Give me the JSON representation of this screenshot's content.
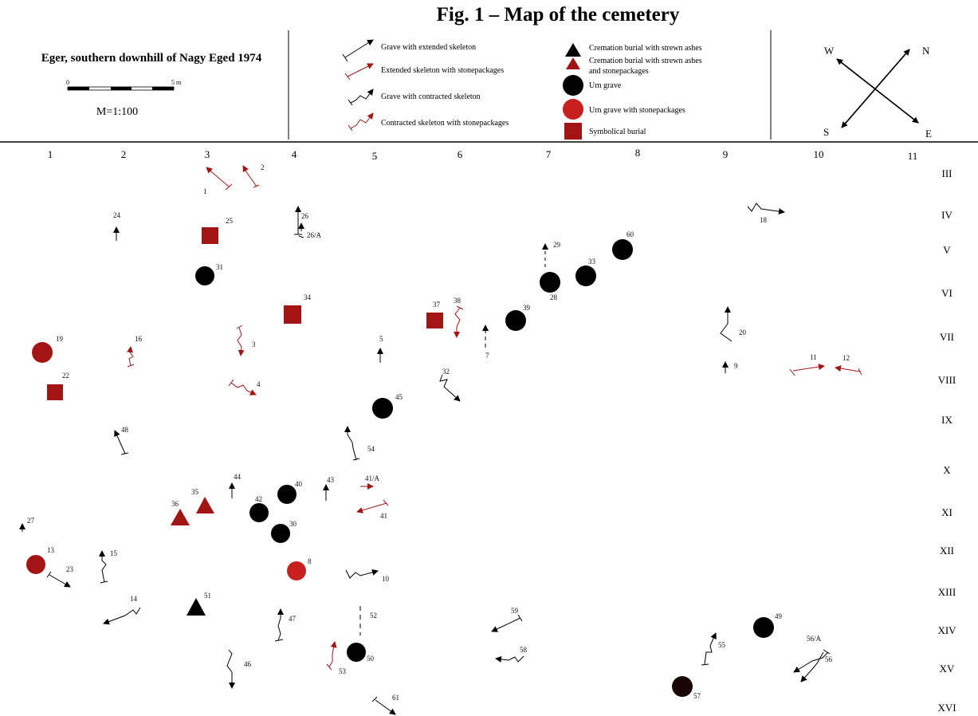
{
  "figure_title": "Fig. 1 – Map of the cemetery",
  "site_title": "Eger, southern downhill of Nagy Eged 1974",
  "scale": {
    "start": "0",
    "end": "5 m",
    "ratio": "M=1:100"
  },
  "legend": {
    "extended": "Grave with extended skeleton",
    "extended_stone": "Extended skeleton with stonepackages",
    "contracted": "Grave with contracted skeleton",
    "contracted_stone": "Contracted skeleton with stonepackages",
    "cremation": "Cremation burial with strewn ashes",
    "cremation_stone_1": "Cremation burial with strewn ashes",
    "cremation_stone_2": "and stonepackages",
    "urn": "Urn grave",
    "urn_stone": "Urn grave with stonepackages",
    "symbolic": "Symbolical burial"
  },
  "compass": {
    "w": "W",
    "n": "N",
    "s": "S",
    "e": "E"
  },
  "columns": [
    "1",
    "2",
    "3",
    "4",
    "5",
    "6",
    "7",
    "8",
    "9",
    "10",
    "11"
  ],
  "rows": [
    "III",
    "IV",
    "V",
    "VI",
    "VII",
    "VIII",
    "IX",
    "X",
    "XI",
    "XII",
    "XIII",
    "XIV",
    "XV",
    "XVI"
  ],
  "colors": {
    "black": "#000000",
    "red": "#a31515",
    "urn_stone_red": "#c8201e"
  },
  "grave_labels": {
    "g1": "1",
    "g2": "2",
    "g3": "3",
    "g4": "4",
    "g5": "5",
    "g7": "7",
    "g8": "8",
    "g9": "9",
    "g10": "10",
    "g11": "11",
    "g12": "12",
    "g13": "13",
    "g14": "14",
    "g15": "15",
    "g16": "16",
    "g18": "18",
    "g19": "19",
    "g20": "20",
    "g22": "22",
    "g23": "23",
    "g24": "24",
    "g25": "25",
    "g26": "26",
    "g26a": "26/A",
    "g27": "27",
    "g28": "28",
    "g29": "29",
    "g30": "30",
    "g31": "31",
    "g32": "32",
    "g33": "33",
    "g34": "34",
    "g35": "35",
    "g36": "36",
    "g37": "37",
    "g38": "38",
    "g39": "39",
    "g40": "40",
    "g41": "41",
    "g41a": "41/A",
    "g42": "42",
    "g43": "43",
    "g44": "44",
    "g45": "45",
    "g46": "46",
    "g47": "47",
    "g48": "48",
    "g49": "49",
    "g50": "50",
    "g51": "51",
    "g52": "52",
    "g53": "53",
    "g54": "54",
    "g55": "55",
    "g56": "56",
    "g56a": "56/A",
    "g57": "57",
    "g58": "58",
    "g59": "59",
    "g60": "60",
    "g61": "61"
  }
}
